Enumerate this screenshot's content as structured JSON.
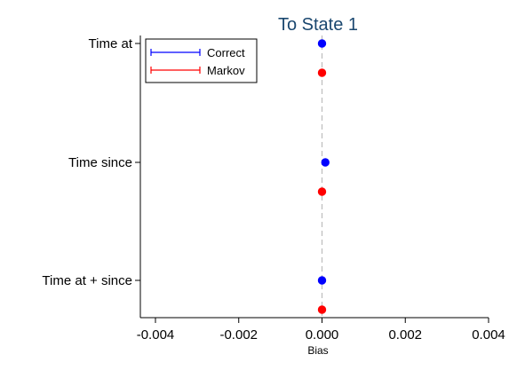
{
  "chart_data": {
    "type": "scatter",
    "title": "To State 1",
    "xlabel": "Bias",
    "ylabel": "",
    "xlim": [
      -0.004,
      0.004
    ],
    "xticks": [
      -0.004,
      -0.002,
      0.0,
      0.002,
      0.004
    ],
    "xtick_labels": [
      "-0.004",
      "-0.002",
      "0.000",
      "0.002",
      "0.004"
    ],
    "reference_line_x": 0,
    "categories": [
      "Time at",
      "Time since",
      "Time at + since"
    ],
    "series": [
      {
        "name": "Correct",
        "color": "#0000ff",
        "values": [
          0.0,
          8e-05,
          0.0
        ]
      },
      {
        "name": "Markov",
        "color": "#ff0000",
        "values": [
          0.0,
          0.0,
          0.0
        ]
      }
    ],
    "legend": {
      "placement": "top-left",
      "entries": [
        "Correct",
        "Markov"
      ]
    },
    "grid": false
  }
}
